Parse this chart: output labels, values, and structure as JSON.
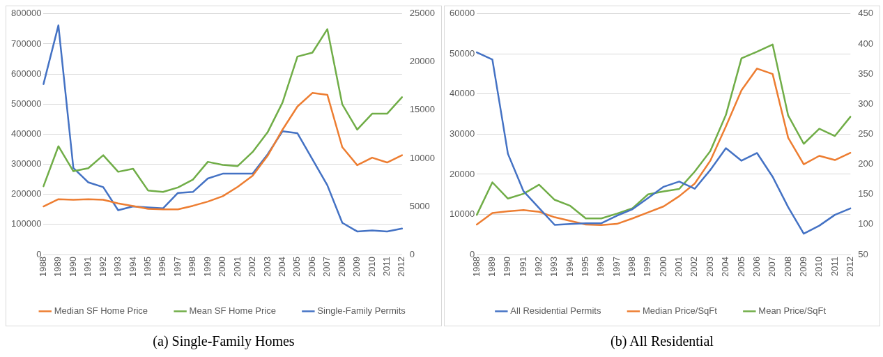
{
  "chart_data": [
    {
      "type": "line",
      "title": "(a) Single-Family Homes",
      "categories": [
        "1988",
        "1989",
        "1990",
        "1991",
        "1992",
        "1993",
        "1994",
        "1995",
        "1996",
        "1997",
        "1998",
        "1999",
        "2000",
        "2001",
        "2002",
        "2003",
        "2004",
        "2005",
        "2006",
        "2007",
        "2008",
        "2009",
        "2010",
        "2011",
        "2012"
      ],
      "series": [
        {
          "name": "Median SF Home Price",
          "color": "#ed7d31",
          "values": [
            160000,
            184000,
            182000,
            184000,
            182000,
            170000,
            161000,
            152000,
            150000,
            150000,
            162000,
            176000,
            194000,
            225000,
            262000,
            328000,
            415000,
            492000,
            537000,
            531000,
            357000,
            297000,
            322000,
            306000,
            330000
          ]
        },
        {
          "name": "Mean SF Home Price",
          "color": "#70ad47",
          "values": [
            227000,
            360000,
            277000,
            287000,
            330000,
            275000,
            285000,
            213000,
            208000,
            223000,
            249000,
            308000,
            298000,
            294000,
            341000,
            406000,
            505000,
            658000,
            671000,
            749000,
            499000,
            415000,
            468000,
            468000,
            523000
          ]
        },
        {
          "name": "Single-Family Permits",
          "color": "#4472c4",
          "axis": "y2",
          "values": [
            17700,
            23800,
            9000,
            7500,
            7000,
            4600,
            5000,
            4900,
            4800,
            6400,
            6500,
            7900,
            8400,
            8400,
            8400,
            10400,
            12800,
            12600,
            9900,
            7200,
            3300,
            2400,
            2500,
            2400,
            2700
          ]
        }
      ],
      "ylim": [
        0,
        800000
      ],
      "yticks": [
        0,
        100000,
        200000,
        300000,
        400000,
        500000,
        600000,
        700000,
        800000
      ],
      "y2lim": [
        0,
        25000
      ],
      "y2ticks": [
        0,
        5000,
        10000,
        15000,
        20000,
        25000
      ],
      "grid": "y",
      "legend": "bottom",
      "marker": "none",
      "line_style": "solid"
    },
    {
      "type": "line",
      "title": "(b) All Residential",
      "categories": [
        "1988",
        "1989",
        "1990",
        "1991",
        "1992",
        "1993",
        "1994",
        "1995",
        "1996",
        "1997",
        "1998",
        "1999",
        "2000",
        "2001",
        "2002",
        "2003",
        "2004",
        "2005",
        "2006",
        "2007",
        "2008",
        "2009",
        "2010",
        "2011",
        "2012"
      ],
      "series": [
        {
          "name": "All Residential Permits",
          "color": "#4472c4",
          "values": [
            50400,
            48600,
            25100,
            15800,
            11600,
            7400,
            7600,
            7800,
            7800,
            9700,
            11300,
            14100,
            16900,
            18200,
            16400,
            21100,
            26500,
            23400,
            25300,
            19400,
            11800,
            5200,
            7200,
            9900,
            11500
          ]
        },
        {
          "name": "Median Price/SqFt",
          "color": "#ed7d31",
          "axis": "y2",
          "values": [
            100,
            119,
            122,
            124,
            121,
            112,
            106,
            100,
            99,
            101,
            110,
            120,
            130,
            147,
            168,
            206,
            263,
            323,
            359,
            350,
            244,
            200,
            214,
            207,
            219
          ]
        },
        {
          "name": "Mean Price/SqFt",
          "color": "#70ad47",
          "axis": "y2",
          "values": [
            116,
            170,
            143,
            151,
            166,
            141,
            131,
            110,
            110,
            118,
            127,
            150,
            155,
            159,
            188,
            222,
            282,
            376,
            387,
            399,
            281,
            234,
            259,
            247,
            279
          ]
        }
      ],
      "ylim": [
        0,
        60000
      ],
      "yticks": [
        0,
        10000,
        20000,
        30000,
        40000,
        50000,
        60000
      ],
      "y2lim": [
        50,
        450
      ],
      "y2ticks": [
        50,
        100,
        150,
        200,
        250,
        300,
        350,
        400,
        450
      ],
      "grid": "y",
      "legend": "bottom",
      "marker": "none",
      "line_style": "solid"
    }
  ]
}
